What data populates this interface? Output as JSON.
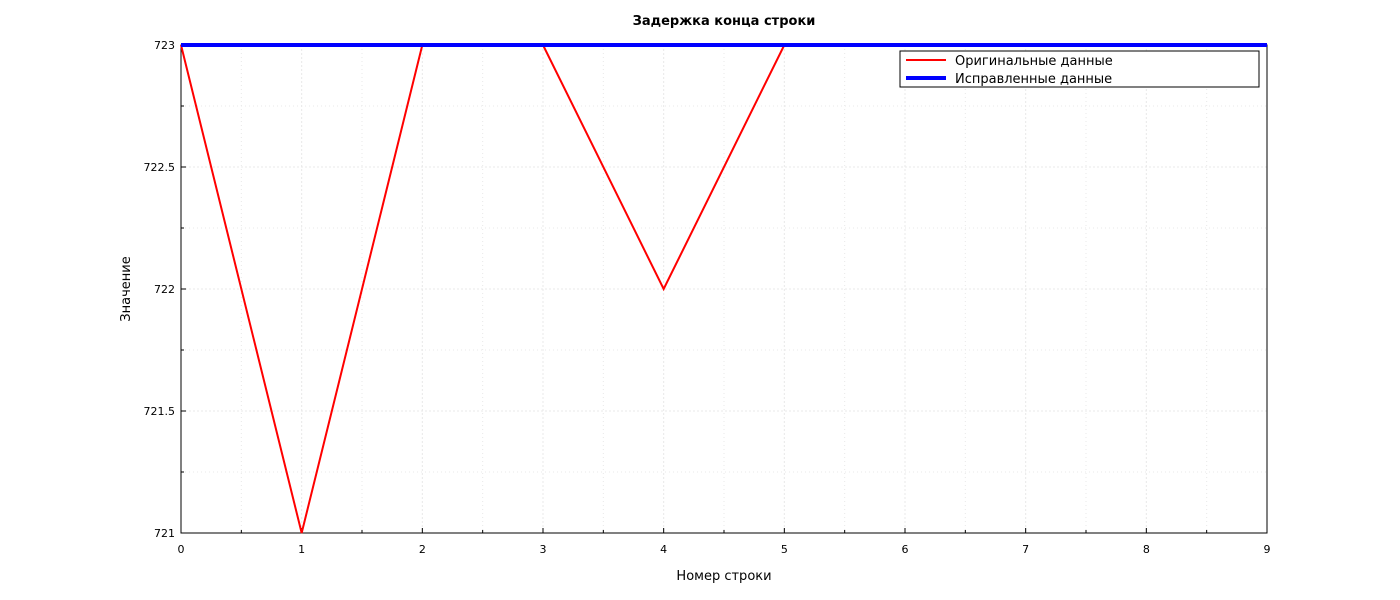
{
  "chart_data": {
    "type": "line",
    "title": "Задержка конца строки",
    "xlabel": "Номер строки",
    "ylabel": "Значение",
    "xlim": [
      0,
      9
    ],
    "ylim": [
      721,
      723
    ],
    "xticks": [
      0,
      1,
      2,
      3,
      4,
      5,
      6,
      7,
      8,
      9
    ],
    "yticks": [
      721,
      721.5,
      722,
      722.5,
      723
    ],
    "ytick_labels": [
      "721",
      "721.5",
      "722",
      "722.5",
      "723"
    ],
    "grid": true,
    "legend_position": "top-right",
    "series": [
      {
        "name": "Оригинальные данные",
        "color": "#ff0000",
        "x": [
          0,
          1,
          2,
          3,
          4,
          5,
          6,
          7,
          8,
          9
        ],
        "y": [
          723,
          721,
          723,
          723,
          722,
          723,
          723,
          723,
          723,
          723
        ]
      },
      {
        "name": "Исправленные данные",
        "color": "#0000ff",
        "x": [
          0,
          1,
          2,
          3,
          4,
          5,
          6,
          7,
          8,
          9
        ],
        "y": [
          723,
          723,
          723,
          723,
          723,
          723,
          723,
          723,
          723,
          723
        ]
      }
    ]
  }
}
